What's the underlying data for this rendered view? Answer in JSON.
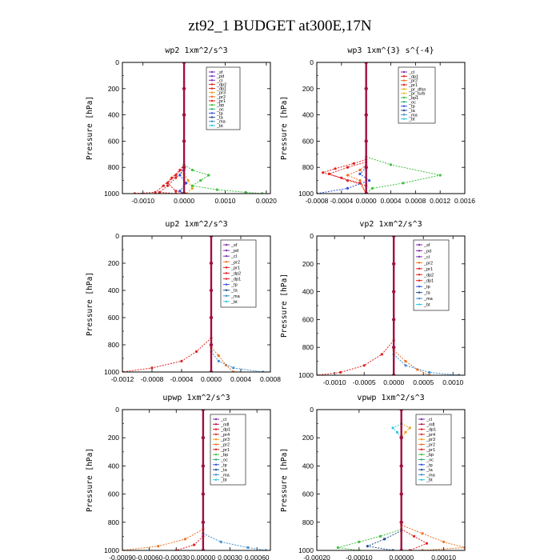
{
  "suptitle": "zt92_1  BUDGET at300E,17N",
  "colors": {
    "_sf": "#7b2fb5",
    "_pd": "#7b2fb5",
    "_cl": "#7b2fb5",
    "_dp1": "#e02020",
    "_dp2": "#e02020",
    "_pr1": "#e02020",
    "_pr2": "#f07020",
    "_pr3": "#f0a020",
    "_pr4": "#d83030",
    "_pr_dfsn": "#f0b030",
    "_pr_turb": "#e8c030",
    "_mfl": "#b01850",
    "_bp": "#40c040",
    "_bp1": "#40c040",
    "_oc": "#2ab070",
    "_tp": "#3050e0",
    "_ta": "#205090",
    "_ma": "#4090d0",
    "_bt": "#30c8e0",
    "profile": "#a01040"
  },
  "chart_data": [
    {
      "type": "line",
      "title": "wp2  1xm^2/s^3",
      "ylabel": "Pressure [hPa]",
      "xlim": [
        -0.0015,
        0.0021
      ],
      "ylim": [
        1000,
        0
      ],
      "xticks": [
        -0.001,
        0.0,
        0.001,
        0.002
      ],
      "xticklabels": [
        "-0.0010",
        "0.0000",
        "0.0010",
        "0.0020"
      ],
      "yticks": [
        0,
        200,
        400,
        600,
        800,
        1000
      ],
      "legend": [
        "_sf",
        "_pd",
        "_cl",
        "_dp2",
        "_dp1",
        "_pr3",
        "_pr2",
        "_pr1",
        "_bp",
        "_oc",
        "_tp",
        "_ta",
        "_ma",
        "_bt"
      ],
      "series": [
        {
          "name": "_dp2",
          "points": [
            [
              0,
              780
            ],
            [
              -0.0001,
              820
            ],
            [
              -0.0003,
              880
            ],
            [
              -0.0005,
              940
            ],
            [
              -0.0007,
              990
            ],
            [
              -0.0012,
              1000
            ]
          ]
        },
        {
          "name": "_dp1",
          "points": [
            [
              0,
              800
            ],
            [
              -0.0002,
              860
            ],
            [
              -0.0004,
              920
            ],
            [
              -0.0002,
              980
            ],
            [
              0,
              1000
            ]
          ]
        },
        {
          "name": "_pr1",
          "points": [
            [
              0,
              820
            ],
            [
              -0.0002,
              880
            ],
            [
              -0.0004,
              940
            ],
            [
              -0.0006,
              990
            ],
            [
              -0.0002,
              1000
            ]
          ]
        },
        {
          "name": "_pr3",
          "points": [
            [
              0,
              850
            ],
            [
              0.0001,
              900
            ],
            [
              0.0002,
              960
            ],
            [
              5e-05,
              1000
            ]
          ]
        },
        {
          "name": "_bp",
          "points": [
            [
              0,
              780
            ],
            [
              0.0002,
              820
            ],
            [
              0.0006,
              860
            ],
            [
              0.0004,
              900
            ],
            [
              0.0002,
              940
            ],
            [
              0.0008,
              970
            ],
            [
              0.0015,
              990
            ],
            [
              0.0019,
              1000
            ]
          ]
        },
        {
          "name": "_tp",
          "points": [
            [
              0,
              800
            ],
            [
              -0.0001,
              860
            ],
            [
              5e-05,
              920
            ],
            [
              -0.0001,
              980
            ],
            [
              0,
              1000
            ]
          ]
        },
        {
          "name": "_cl",
          "points": [
            [
              0,
              0
            ],
            [
              0,
              200
            ],
            [
              0,
              400
            ],
            [
              0,
              600
            ],
            [
              0,
              800
            ],
            [
              0,
              1000
            ]
          ]
        }
      ]
    },
    {
      "type": "line",
      "title": "wp3  1xm^{3} s^{-4}",
      "ylabel": "Pressure [hPa]",
      "xlim": [
        -0.0008,
        0.0016
      ],
      "ylim": [
        1000,
        0
      ],
      "xticks": [
        -0.0008,
        -0.0004,
        0.0,
        0.0004,
        0.0008,
        0.0012,
        0.0016
      ],
      "xticklabels": [
        "-0.0008",
        "-0.0004",
        "0.0000",
        "0.0004",
        "0.0008",
        "0.0012",
        "0.0016"
      ],
      "yticks": [
        0,
        200,
        400,
        600,
        800,
        1000
      ],
      "legend": [
        "_cl",
        "_dp1",
        "_pr2",
        "_pr1",
        "_pr_dfsn",
        "_pr_turb",
        "_bp1",
        "_oc",
        "_tp",
        "_ta",
        "_ma",
        "_bt"
      ],
      "series": [
        {
          "name": "_pr1",
          "points": [
            [
              0,
              740
            ],
            [
              -0.0002,
              770
            ],
            [
              -0.0005,
              810
            ],
            [
              -0.0007,
              840
            ],
            [
              -0.0004,
              880
            ],
            [
              -0.0001,
              920
            ],
            [
              0,
              1000
            ]
          ]
        },
        {
          "name": "_dp1",
          "points": [
            [
              0,
              760
            ],
            [
              -0.0003,
              800
            ],
            [
              -0.0006,
              850
            ],
            [
              -0.0003,
              900
            ],
            [
              0,
              940
            ],
            [
              0,
              1000
            ]
          ]
        },
        {
          "name": "_pr2",
          "points": [
            [
              0,
              780
            ],
            [
              -0.0001,
              820
            ],
            [
              -0.0003,
              860
            ],
            [
              -0.0001,
              900
            ],
            [
              0,
              1000
            ]
          ]
        },
        {
          "name": "_bp1",
          "points": [
            [
              0,
              720
            ],
            [
              0.0004,
              780
            ],
            [
              0.0012,
              860
            ],
            [
              0.0006,
              920
            ],
            [
              0.0001,
              960
            ],
            [
              0,
              1000
            ]
          ]
        },
        {
          "name": "_tp",
          "points": [
            [
              0,
              800
            ],
            [
              -0.0001,
              850
            ],
            [
              5e-05,
              900
            ],
            [
              -0.0003,
              960
            ],
            [
              -0.0008,
              1000
            ]
          ]
        },
        {
          "name": "_cl",
          "points": [
            [
              0,
              0
            ],
            [
              0,
              200
            ],
            [
              0,
              400
            ],
            [
              0,
              600
            ],
            [
              0,
              800
            ],
            [
              0,
              1000
            ]
          ]
        }
      ]
    },
    {
      "type": "line",
      "title": "up2  1xm^2/s^3",
      "ylabel": "Pressure [hPa]",
      "xlim": [
        -0.0012,
        0.0008
      ],
      "ylim": [
        1000,
        0
      ],
      "xticks": [
        -0.0012,
        -0.0008,
        -0.0004,
        0.0,
        0.0004,
        0.0008
      ],
      "xticklabels": [
        "-0.0012",
        "-0.0008",
        "-0.0004",
        "0.0000",
        "0.0004",
        "0.0008"
      ],
      "yticks": [
        0,
        200,
        400,
        600,
        800,
        1000
      ],
      "legend": [
        "_sf",
        "_pd",
        "_cl",
        "_pr2",
        "_pr1",
        "_dp2",
        "_dp1",
        "_tp",
        "_ta",
        "_ma",
        "_bt"
      ],
      "series": [
        {
          "name": "_dp2",
          "points": [
            [
              0,
              750
            ],
            [
              -0.0002,
              850
            ],
            [
              -0.0004,
              920
            ],
            [
              -0.0008,
              970
            ],
            [
              -0.0012,
              1000
            ]
          ]
        },
        {
          "name": "_pr2",
          "points": [
            [
              0,
              820
            ],
            [
              0.0001,
              880
            ],
            [
              0.0002,
              950
            ],
            [
              0.0003,
              1000
            ]
          ]
        },
        {
          "name": "_ma",
          "points": [
            [
              0,
              850
            ],
            [
              0.0001,
              920
            ],
            [
              0.0003,
              970
            ],
            [
              0.0007,
              1000
            ]
          ]
        },
        {
          "name": "_cl",
          "points": [
            [
              0,
              0
            ],
            [
              0,
              200
            ],
            [
              0,
              400
            ],
            [
              0,
              600
            ],
            [
              0,
              800
            ],
            [
              0,
              1000
            ]
          ]
        }
      ]
    },
    {
      "type": "line",
      "title": "vp2  1xm^2/s^3",
      "ylabel": "Pressure [hPa]",
      "xlim": [
        -0.0013,
        0.0012
      ],
      "ylim": [
        1000,
        0
      ],
      "xticks": [
        -0.001,
        -0.0005,
        0.0,
        0.0005,
        0.001
      ],
      "xticklabels": [
        "-0.0010",
        "-0.0005",
        "0.0000",
        "0.0005",
        "0.0010"
      ],
      "yticks": [
        0,
        200,
        400,
        600,
        800,
        1000
      ],
      "legend": [
        "_sf",
        "_pd",
        "_cl",
        "_pr2",
        "_pr1",
        "_dp2",
        "_dp1",
        "_tp",
        "_ta",
        "_ma",
        "_bt"
      ],
      "series": [
        {
          "name": "_dp2",
          "points": [
            [
              0,
              750
            ],
            [
              -0.0002,
              850
            ],
            [
              -0.0005,
              930
            ],
            [
              -0.0009,
              980
            ],
            [
              -0.0013,
              1000
            ]
          ]
        },
        {
          "name": "_pr2",
          "points": [
            [
              0,
              820
            ],
            [
              0.0002,
              900
            ],
            [
              0.0004,
              960
            ],
            [
              0.0006,
              1000
            ]
          ]
        },
        {
          "name": "_ma",
          "points": [
            [
              0,
              850
            ],
            [
              0.0002,
              930
            ],
            [
              0.0006,
              980
            ],
            [
              0.0011,
              1000
            ]
          ]
        },
        {
          "name": "_cl",
          "points": [
            [
              0,
              0
            ],
            [
              0,
              200
            ],
            [
              0,
              400
            ],
            [
              0,
              600
            ],
            [
              0,
              800
            ],
            [
              0,
              1000
            ]
          ]
        }
      ]
    },
    {
      "type": "line",
      "title": "upwp  1xm^2/s^3",
      "ylabel": "Pressure [hPa]",
      "xlim": [
        -0.0009,
        0.00075
      ],
      "ylim": [
        1000,
        0
      ],
      "xticks": [
        -0.0009,
        -0.0006,
        -0.0003,
        0.0,
        0.0003,
        0.0006
      ],
      "xticklabels": [
        "-0.00090",
        "-0.00060",
        "-0.00030",
        "0.00000",
        "0.00030",
        "0.00060"
      ],
      "yticks": [
        0,
        200,
        400,
        600,
        800,
        1000
      ],
      "legend": [
        "_cl",
        "_mfl",
        "_dp1",
        "_pr4",
        "_pr3",
        "_pr2",
        "_pr1",
        "_bp",
        "_oc",
        "_tp",
        "_ta",
        "_ma",
        "_bt"
      ],
      "series": [
        {
          "name": "_pr2",
          "points": [
            [
              0,
              850
            ],
            [
              -0.0002,
              920
            ],
            [
              -0.0005,
              970
            ],
            [
              -0.0009,
              1000
            ]
          ]
        },
        {
          "name": "_ma",
          "points": [
            [
              0,
              880
            ],
            [
              0.0002,
              940
            ],
            [
              0.0005,
              980
            ],
            [
              0.0007,
              1000
            ]
          ]
        },
        {
          "name": "_dp1",
          "points": [
            [
              0,
              900
            ],
            [
              -0.0001,
              960
            ],
            [
              -0.0003,
              1000
            ]
          ]
        },
        {
          "name": "_mfl",
          "points": [
            [
              0,
              0
            ],
            [
              0,
              200
            ],
            [
              0,
              400
            ],
            [
              0,
              600
            ],
            [
              0,
              800
            ],
            [
              0,
              1000
            ]
          ]
        }
      ]
    },
    {
      "type": "line",
      "title": "vpwp  1xm^2/s^3",
      "ylabel": "Pressure [hPa]",
      "xlim": [
        -0.0002,
        0.00015
      ],
      "ylim": [
        1000,
        0
      ],
      "xticks": [
        -0.0002,
        -0.0001,
        0.0,
        0.0001
      ],
      "xticklabels": [
        "-0.00020",
        "-0.00010",
        "0.00000",
        "0.00010"
      ],
      "yticks": [
        0,
        200,
        400,
        600,
        800,
        1000
      ],
      "legend": [
        "_cl",
        "_mfl",
        "_dp1",
        "_pr4",
        "_pr3",
        "_pr2",
        "_pr1",
        "_bp",
        "_oc",
        "_tp",
        "_ta",
        "_ma",
        "_bt"
      ],
      "series": [
        {
          "name": "_pr3",
          "points": [
            [
              0,
              100
            ],
            [
              2e-05,
              130
            ],
            [
              1e-05,
              160
            ],
            [
              0,
              200
            ]
          ]
        },
        {
          "name": "_bt",
          "points": [
            [
              0,
              100
            ],
            [
              -2e-05,
              130
            ],
            [
              -1e-05,
              160
            ],
            [
              0,
              200
            ]
          ]
        },
        {
          "name": "_pr2",
          "points": [
            [
              0,
              820
            ],
            [
              5e-05,
              880
            ],
            [
              0.0001,
              940
            ],
            [
              0.00015,
              980
            ],
            [
              5e-05,
              1000
            ]
          ]
        },
        {
          "name": "_dp1",
          "points": [
            [
              0,
              850
            ],
            [
              3e-05,
              900
            ],
            [
              6e-05,
              950
            ],
            [
              2e-05,
              1000
            ]
          ]
        },
        {
          "name": "_bp",
          "points": [
            [
              0,
              850
            ],
            [
              -5e-05,
              900
            ],
            [
              -0.0001,
              940
            ],
            [
              -0.00015,
              980
            ],
            [
              -0.0001,
              1000
            ]
          ]
        },
        {
          "name": "_ta",
          "points": [
            [
              0,
              860
            ],
            [
              -4e-05,
              920
            ],
            [
              -8e-05,
              970
            ],
            [
              -2e-05,
              1000
            ]
          ]
        },
        {
          "name": "_mfl",
          "points": [
            [
              0,
              0
            ],
            [
              0,
              200
            ],
            [
              0,
              400
            ],
            [
              0,
              600
            ],
            [
              0,
              800
            ],
            [
              0,
              1000
            ]
          ]
        }
      ]
    }
  ]
}
